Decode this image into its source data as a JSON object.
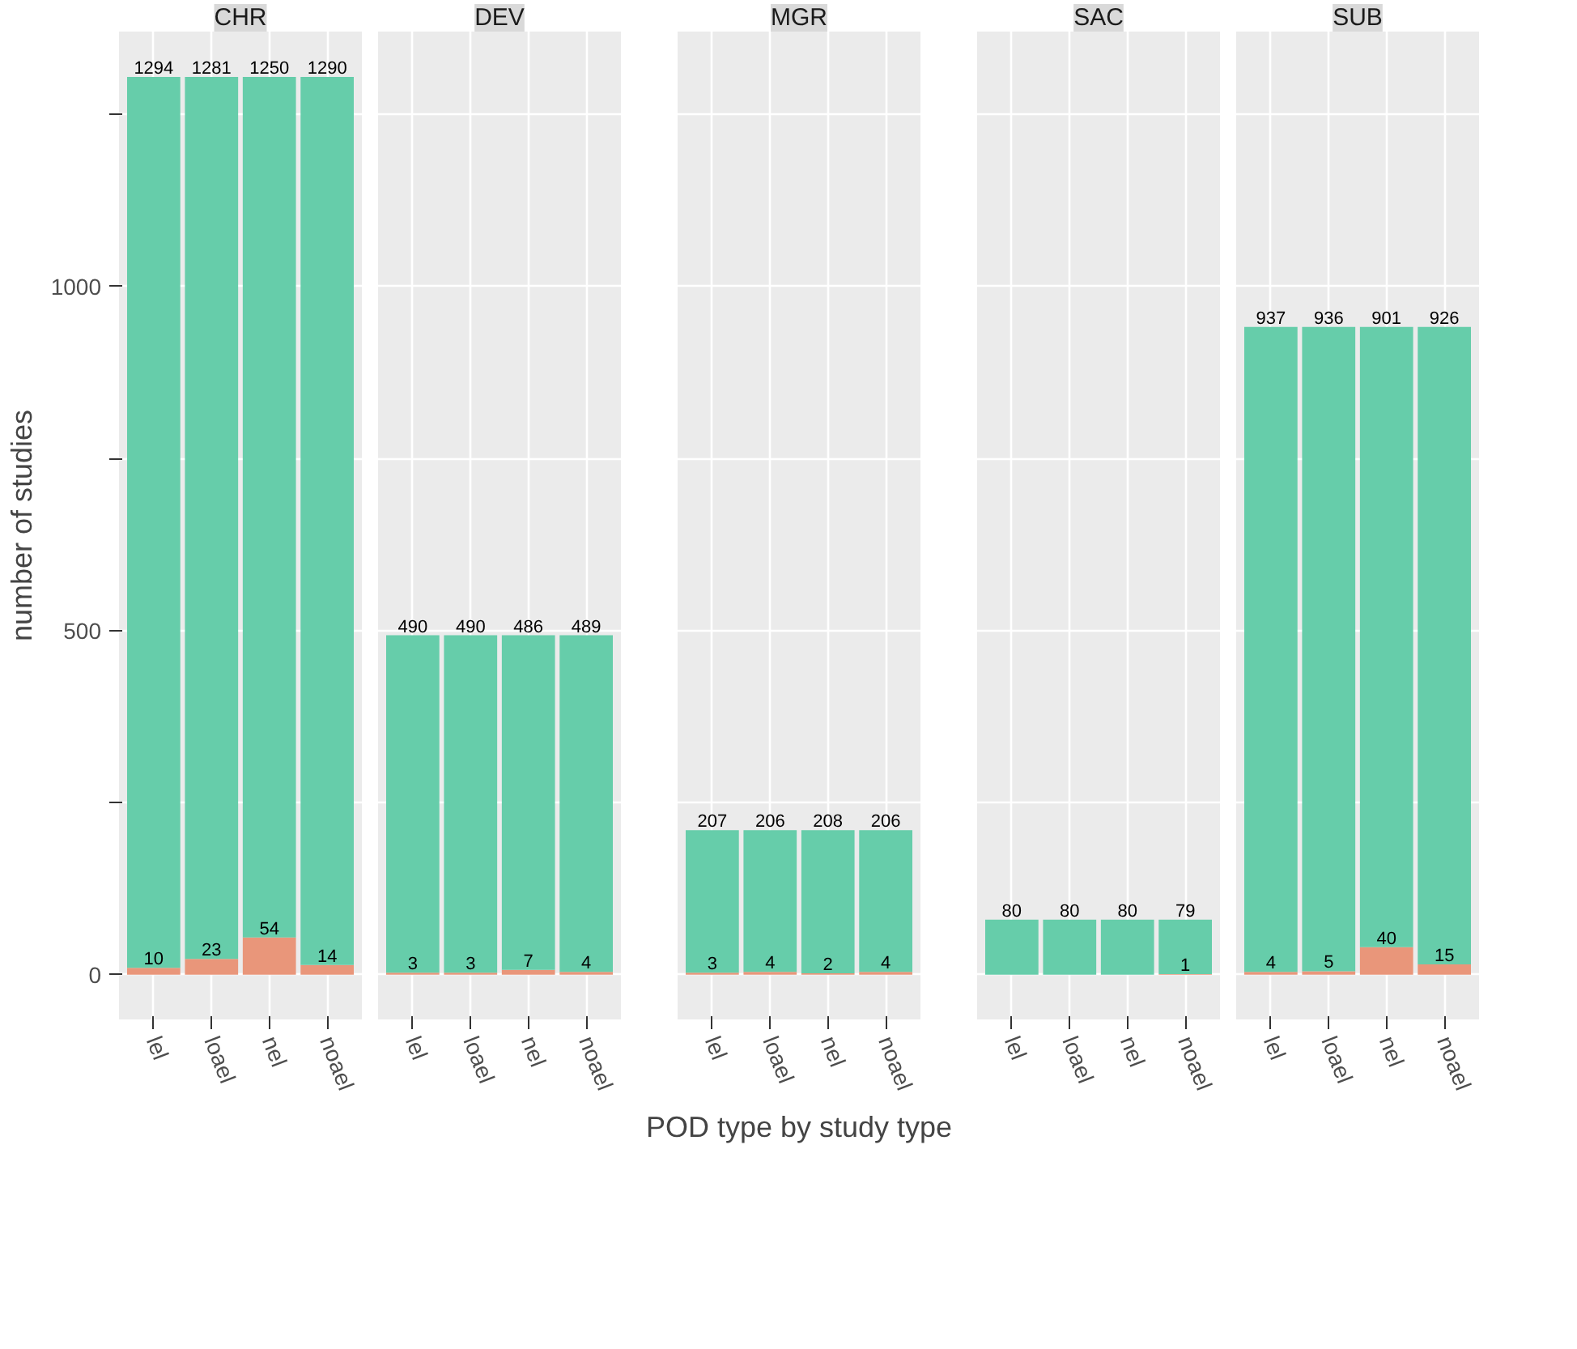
{
  "chart_data": [
    {
      "type": "bar",
      "stacked": true,
      "title": "CHR",
      "ylabel": "number of studies",
      "categories": [
        "lel",
        "loael",
        "nel",
        "noael"
      ],
      "series": [
        {
          "color": "#e9967a",
          "values": [
            10,
            23,
            54,
            14
          ],
          "value_labels": [
            "10",
            "23",
            "54",
            "14"
          ]
        },
        {
          "color": "#66cdaa",
          "values": [
            1294,
            1281,
            1250,
            1290
          ],
          "value_labels": [
            "1294",
            "1281",
            "1250",
            "1290"
          ]
        }
      ],
      "ylim": [
        -65,
        1370
      ],
      "yticks": [
        0,
        {
          "value": 250,
          "label": null
        },
        500,
        {
          "value": 750,
          "label": null
        },
        1000,
        {
          "value": 1250,
          "label": null
        }
      ],
      "grid": true
    },
    {
      "type": "bar",
      "stacked": true,
      "title": "DEV",
      "categories": [
        "lel",
        "loael",
        "nel",
        "noael"
      ],
      "series": [
        {
          "color": "#e9967a",
          "values": [
            3,
            3,
            7,
            4
          ],
          "value_labels": [
            "3",
            "3",
            "7",
            "4"
          ]
        },
        {
          "color": "#66cdaa",
          "values": [
            490,
            490,
            486,
            489
          ],
          "value_labels": [
            "490",
            "490",
            "486",
            "489"
          ]
        }
      ],
      "ylim": [
        -65,
        1370
      ],
      "yticks": [
        0,
        {
          "value": 250,
          "label": null
        },
        500,
        {
          "value": 750,
          "label": null
        },
        1000,
        {
          "value": 1250,
          "label": null
        }
      ],
      "grid": true,
      "tick_labels": "x"
    },
    {
      "type": "bar",
      "stacked": true,
      "title": "MGR",
      "xlabel": "POD type by study type",
      "categories": [
        "lel",
        "loael",
        "nel",
        "noael"
      ],
      "series": [
        {
          "color": "#e9967a",
          "values": [
            3,
            4,
            2,
            4
          ],
          "value_labels": [
            "3",
            "4",
            "2",
            "4"
          ]
        },
        {
          "color": "#66cdaa",
          "values": [
            207,
            206,
            208,
            206
          ],
          "value_labels": [
            "207",
            "206",
            "208",
            "206"
          ]
        }
      ],
      "ylim": [
        -65,
        1370
      ],
      "yticks": [
        0,
        {
          "value": 250,
          "label": null
        },
        500,
        {
          "value": 750,
          "label": null
        },
        1000,
        {
          "value": 1250,
          "label": null
        }
      ],
      "grid": true,
      "tick_labels": "x"
    },
    {
      "type": "bar",
      "stacked": true,
      "title": "SAC",
      "categories": [
        "lel",
        "loael",
        "nel",
        "noael"
      ],
      "series": [
        {
          "color": "#e9967a",
          "values": [
            0,
            0,
            0,
            1
          ],
          "value_labels": [
            null,
            null,
            null,
            "1"
          ]
        },
        {
          "color": "#66cdaa",
          "values": [
            80,
            80,
            80,
            79
          ],
          "value_labels": [
            "80",
            "80",
            "80",
            "79"
          ]
        }
      ],
      "ylim": [
        -65,
        1370
      ],
      "yticks": [
        0,
        {
          "value": 250,
          "label": null
        },
        500,
        {
          "value": 750,
          "label": null
        },
        1000,
        {
          "value": 1250,
          "label": null
        }
      ],
      "grid": true,
      "tick_labels": "x"
    },
    {
      "type": "bar",
      "stacked": true,
      "title": "SUB",
      "categories": [
        "lel",
        "loael",
        "nel",
        "noael"
      ],
      "series": [
        {
          "color": "#e9967a",
          "values": [
            4,
            5,
            40,
            15
          ],
          "value_labels": [
            "4",
            "5",
            "40",
            "15"
          ]
        },
        {
          "color": "#66cdaa",
          "values": [
            937,
            936,
            901,
            926
          ],
          "value_labels": [
            "937",
            "936",
            "901",
            "926"
          ]
        }
      ],
      "ylim": [
        -65,
        1370
      ],
      "yticks": [
        0,
        {
          "value": 250,
          "label": null
        },
        500,
        {
          "value": 750,
          "label": null
        },
        1000,
        {
          "value": 1250,
          "label": null
        }
      ],
      "grid": true,
      "tick_labels": "x"
    }
  ]
}
